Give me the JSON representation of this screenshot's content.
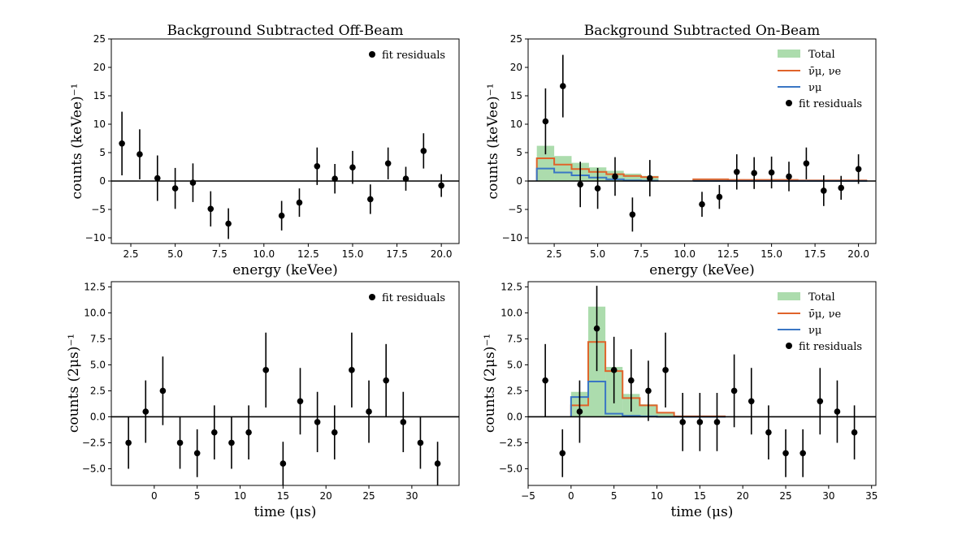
{
  "figure": {
    "colors": {
      "total_fill": "#74c476",
      "numubar_nue": "#e0632a",
      "numu": "#3a76c4",
      "points": "#000000",
      "axis": "#000000",
      "zero_line": "#000000"
    }
  },
  "chart_data": [
    {
      "id": "energy-off",
      "type": "scatter",
      "title": "Background Subtracted Off-Beam",
      "xlabel": "energy (keVee)",
      "ylabel": "counts (keVee)⁻¹",
      "xlim": [
        1.4,
        21.0
      ],
      "ylim": [
        -11.0,
        25.0
      ],
      "xticks": [
        2.5,
        5.0,
        7.5,
        10.0,
        12.5,
        15.0,
        17.5,
        20.0
      ],
      "xtick_labels": [
        "2.5",
        "5.0",
        "7.5",
        "10.0",
        "12.5",
        "15.0",
        "17.5",
        "20.0"
      ],
      "yticks": [
        -10,
        -5,
        0,
        5,
        10,
        15,
        20,
        25
      ],
      "ytick_labels": [
        "−10",
        "−5",
        "0",
        "5",
        "10",
        "15",
        "20",
        "25"
      ],
      "legend": [
        "fit residuals"
      ],
      "legend_position": "top-right",
      "series": [
        {
          "name": "fit residuals",
          "x": [
            2,
            3,
            4,
            5,
            6,
            7,
            8,
            11,
            12,
            13,
            14,
            15,
            16,
            17,
            18,
            19,
            20
          ],
          "y": [
            6.6,
            4.7,
            0.5,
            -1.3,
            -0.3,
            -4.9,
            -7.5,
            -6.1,
            -3.8,
            2.6,
            0.4,
            2.4,
            -3.2,
            3.1,
            0.4,
            5.3,
            -0.8
          ],
          "err": [
            5.6,
            4.4,
            4.0,
            3.6,
            3.4,
            3.1,
            2.7,
            2.6,
            2.5,
            3.3,
            2.6,
            2.9,
            2.6,
            2.8,
            2.1,
            3.1,
            2.0
          ]
        }
      ]
    },
    {
      "id": "energy-on",
      "type": "scatter",
      "title": "Background Subtracted On-Beam",
      "xlabel": "energy (keVee)",
      "ylabel": "counts (keVee)⁻¹",
      "xlim": [
        1.0,
        21.0
      ],
      "ylim": [
        -11.0,
        25.0
      ],
      "xticks": [
        2.5,
        5.0,
        7.5,
        10.0,
        12.5,
        15.0,
        17.5,
        20.0
      ],
      "xtick_labels": [
        "2.5",
        "5.0",
        "7.5",
        "10.0",
        "12.5",
        "15.0",
        "17.5",
        "20.0"
      ],
      "yticks": [
        -10,
        -5,
        0,
        5,
        10,
        15,
        20,
        25
      ],
      "ytick_labels": [
        "−10",
        "−5",
        "0",
        "5",
        "10",
        "15",
        "20",
        "25"
      ],
      "legend": [
        "Total",
        "ν̄μ, νe",
        "νμ",
        "fit residuals"
      ],
      "legend_position": "top-right",
      "hist_edges": [
        1.5,
        2.5,
        3.5,
        4.5,
        5.5,
        6.5,
        7.5,
        8.5,
        9.5,
        10.5,
        11.5,
        12.5,
        13.5,
        14.5,
        15.5,
        16.5,
        17.5,
        18.5,
        19.5,
        20.5
      ],
      "hist_total": [
        6.2,
        4.4,
        3.2,
        2.4,
        1.8,
        1.3,
        0.9,
        0,
        0,
        0.3,
        0.3,
        0.3,
        0.2,
        0.2,
        0.2,
        0.2,
        0.1,
        0.1,
        0.1
      ],
      "hist_numubar_nue": [
        4.0,
        2.9,
        2.1,
        1.6,
        1.2,
        0.9,
        0.7,
        0,
        0,
        0.3,
        0.3,
        0.2,
        0.2,
        0.2,
        0.2,
        0.1,
        0.1,
        0.1,
        0.1
      ],
      "hist_numu": [
        2.2,
        1.5,
        1.0,
        0.6,
        0.3,
        0.1,
        0.05,
        0,
        0,
        0.02,
        0.02,
        0.02,
        0.02,
        0.01,
        0.01,
        0.01,
        0.01,
        0.01,
        0.01
      ],
      "series": [
        {
          "name": "fit residuals",
          "x": [
            2,
            3,
            4,
            5,
            6,
            7,
            8,
            11,
            12,
            13,
            14,
            15,
            16,
            17,
            18,
            19,
            20
          ],
          "y": [
            10.5,
            16.7,
            -0.6,
            -1.3,
            0.8,
            -5.9,
            0.5,
            -4.1,
            -2.8,
            1.6,
            1.4,
            1.5,
            0.8,
            3.1,
            -1.7,
            -1.2,
            2.1
          ],
          "err": [
            5.8,
            5.5,
            4.0,
            3.6,
            3.4,
            3.0,
            3.2,
            2.2,
            2.1,
            3.1,
            2.8,
            2.8,
            2.6,
            2.8,
            2.7,
            2.1,
            2.6
          ]
        }
      ]
    },
    {
      "id": "time-off",
      "type": "scatter",
      "title": "",
      "xlabel": "time (μs)",
      "ylabel": "counts (2μs)⁻¹",
      "xlim": [
        -5.0,
        35.5
      ],
      "ylim": [
        -6.6,
        13.0
      ],
      "xticks": [
        0,
        5,
        10,
        15,
        20,
        25,
        30
      ],
      "xtick_labels": [
        "0",
        "5",
        "10",
        "15",
        "20",
        "25",
        "30"
      ],
      "yticks": [
        -5.0,
        -2.5,
        0.0,
        2.5,
        5.0,
        7.5,
        10.0,
        12.5
      ],
      "ytick_labels": [
        "−5.0",
        "−2.5",
        "0.0",
        "2.5",
        "5.0",
        "7.5",
        "10.0",
        "12.5"
      ],
      "legend": [
        "fit residuals"
      ],
      "legend_position": "top-right",
      "series": [
        {
          "name": "fit residuals",
          "x": [
            -3,
            -1,
            1,
            3,
            5,
            7,
            9,
            11,
            13,
            15,
            17,
            19,
            21,
            23,
            25,
            27,
            29,
            31,
            33
          ],
          "y": [
            -2.5,
            0.5,
            2.5,
            -2.5,
            -3.5,
            -1.5,
            -2.5,
            -1.5,
            4.5,
            -4.5,
            1.5,
            -0.5,
            -1.5,
            4.5,
            0.5,
            3.5,
            -0.5,
            -2.5,
            -4.5
          ],
          "err": [
            2.5,
            3.0,
            3.3,
            2.5,
            2.3,
            2.6,
            2.5,
            2.6,
            3.6,
            2.1,
            3.2,
            2.9,
            2.6,
            3.6,
            3.0,
            3.5,
            2.9,
            2.5,
            2.1
          ]
        }
      ]
    },
    {
      "id": "time-on",
      "type": "scatter",
      "title": "",
      "xlabel": "time (μs)",
      "ylabel": "counts (2μs)⁻¹",
      "xlim": [
        -5.0,
        35.5
      ],
      "ylim": [
        -6.6,
        13.0
      ],
      "xticks": [
        -5,
        0,
        5,
        10,
        15,
        20,
        25,
        30,
        35
      ],
      "xtick_labels": [
        "−5",
        "0",
        "5",
        "10",
        "15",
        "20",
        "25",
        "30",
        "35"
      ],
      "yticks": [
        -5.0,
        -2.5,
        0.0,
        2.5,
        5.0,
        7.5,
        10.0,
        12.5
      ],
      "ytick_labels": [
        "−5.0",
        "−2.5",
        "0.0",
        "2.5",
        "5.0",
        "7.5",
        "10.0",
        "12.5"
      ],
      "legend": [
        "Total",
        "ν̄μ, νe",
        "νμ",
        "fit residuals"
      ],
      "legend_position": "top-right",
      "hist_edges": [
        -4,
        -2,
        0,
        2,
        4,
        6,
        8,
        10,
        12,
        14,
        16,
        18,
        20,
        22,
        24,
        26,
        28,
        30,
        32,
        34
      ],
      "hist_total": [
        0,
        0,
        2.4,
        10.6,
        4.8,
        2.2,
        1.2,
        0.4,
        0.05,
        0.05,
        0.05,
        0,
        0,
        0,
        0,
        0,
        0,
        0,
        0
      ],
      "hist_numubar_nue": [
        0,
        0,
        1.1,
        7.2,
        4.4,
        1.8,
        1.1,
        0.4,
        0.05,
        0.05,
        0.05,
        0,
        0,
        0,
        0,
        0,
        0,
        0,
        0
      ],
      "hist_numu": [
        0,
        0,
        1.9,
        3.4,
        0.3,
        0.1,
        0.05,
        0.0,
        0,
        0,
        0,
        0,
        0,
        0,
        0,
        0,
        0,
        0,
        0
      ],
      "series": [
        {
          "name": "fit residuals",
          "x": [
            -3,
            -1,
            1,
            3,
            5,
            7,
            9,
            11,
            13,
            15,
            17,
            19,
            21,
            23,
            25,
            27,
            29,
            31,
            33
          ],
          "y": [
            3.5,
            -3.5,
            0.5,
            8.5,
            4.5,
            3.5,
            2.5,
            4.5,
            -0.5,
            -0.5,
            -0.5,
            2.5,
            1.5,
            -1.5,
            -3.5,
            -3.5,
            1.5,
            0.5,
            -1.5
          ],
          "err": [
            3.5,
            2.3,
            3.0,
            4.1,
            3.2,
            3.0,
            2.9,
            3.6,
            2.8,
            2.8,
            2.8,
            3.5,
            3.2,
            2.6,
            2.3,
            2.3,
            3.2,
            3.0,
            2.6
          ]
        }
      ]
    }
  ]
}
